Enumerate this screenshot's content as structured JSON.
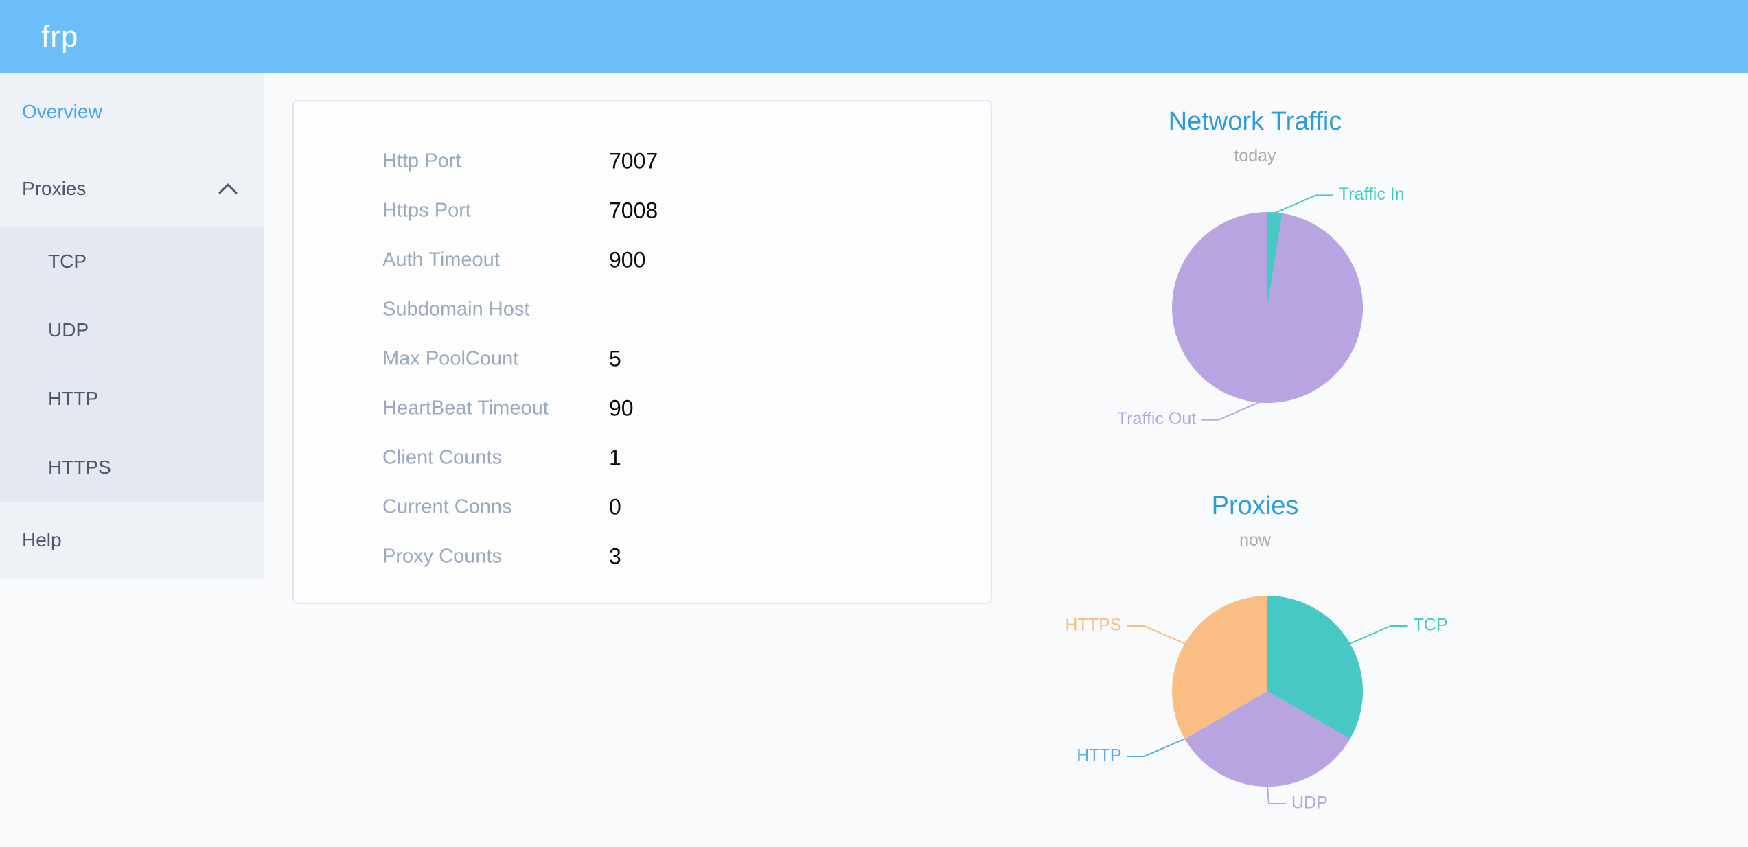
{
  "header": {
    "logo": "frp"
  },
  "sidebar": {
    "items": [
      {
        "label": "Overview",
        "active": true
      },
      {
        "label": "Proxies",
        "expanded": true,
        "children": [
          "TCP",
          "UDP",
          "HTTP",
          "HTTPS"
        ]
      },
      {
        "label": "Help"
      }
    ]
  },
  "server_info": {
    "rows": [
      {
        "label": "Http Port",
        "value": "7007"
      },
      {
        "label": "Https Port",
        "value": "7008"
      },
      {
        "label": "Auth Timeout",
        "value": "900"
      },
      {
        "label": "Subdomain Host",
        "value": ""
      },
      {
        "label": "Max PoolCount",
        "value": "5"
      },
      {
        "label": "HeartBeat Timeout",
        "value": "90"
      },
      {
        "label": "Client Counts",
        "value": "1"
      },
      {
        "label": "Current Conns",
        "value": "0"
      },
      {
        "label": "Proxy Counts",
        "value": "3"
      }
    ]
  },
  "chart_data": [
    {
      "type": "pie",
      "title": "Network Traffic",
      "subtitle": "today",
      "legend_position": "outside-labels",
      "series": [
        {
          "name": "Traffic In",
          "value": 2.5,
          "percent": 2.5,
          "color": "#48c8c5"
        },
        {
          "name": "Traffic Out",
          "value": 97.5,
          "percent": 97.5,
          "color": "#b7a4e0"
        }
      ]
    },
    {
      "type": "pie",
      "title": "Proxies",
      "subtitle": "now",
      "legend_position": "outside-labels",
      "series": [
        {
          "name": "TCP",
          "value": 1,
          "percent": 33.3,
          "color": "#48c8c5"
        },
        {
          "name": "UDP",
          "value": 1,
          "percent": 33.3,
          "color": "#b7a4e0"
        },
        {
          "name": "HTTP",
          "value": 0,
          "percent": 0,
          "color": "#58ace8"
        },
        {
          "name": "HTTPS",
          "value": 1,
          "percent": 33.3,
          "color": "#fabd83"
        }
      ]
    }
  ],
  "colors": {
    "header_bg": "#6cbef8",
    "sidebar_bg": "#eef1f6",
    "submenu_bg": "#e4e8f1",
    "active_link": "#43a3f7",
    "menu_text": "#48576a",
    "chart_title": "#2f9bdb",
    "info_label": "#99a9bf",
    "teal": "#48c8c5",
    "purple": "#b7a4e0",
    "orange": "#fabd83",
    "blue": "#58ace8"
  }
}
